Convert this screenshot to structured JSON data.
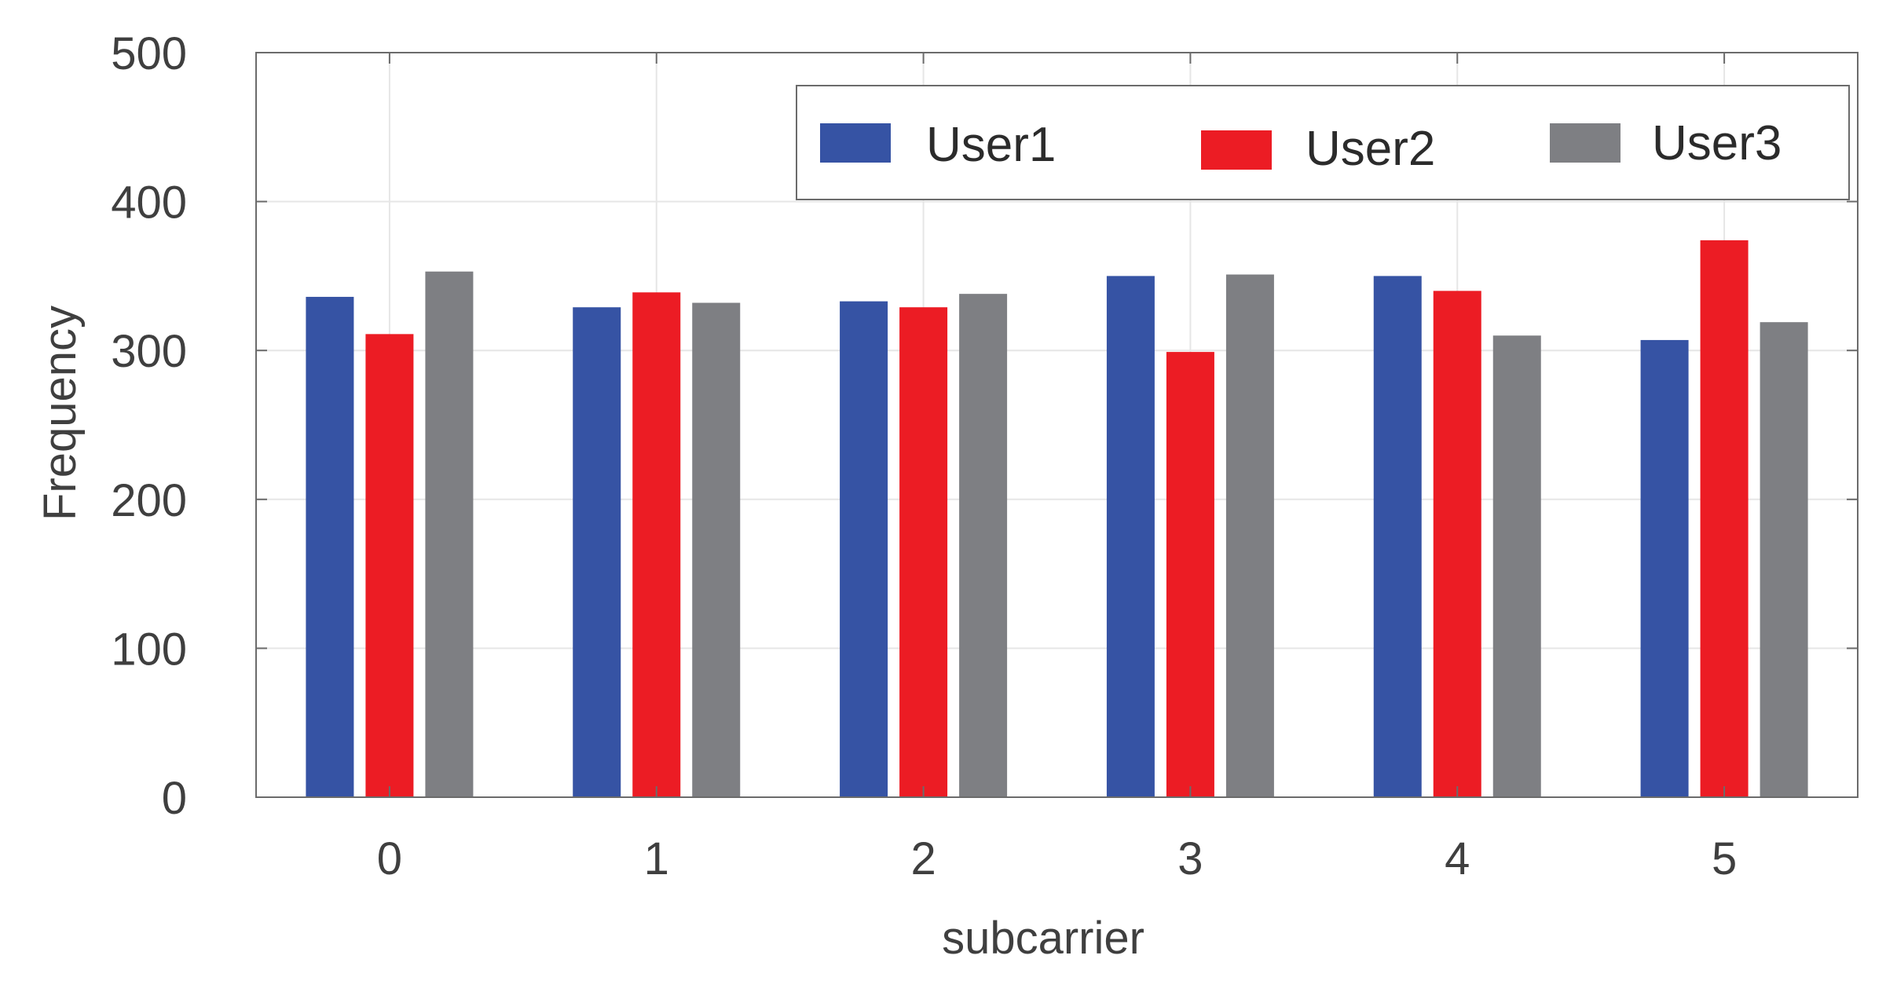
{
  "chart_data": {
    "type": "bar",
    "xlabel": "subcarrier",
    "ylabel": "Frequency",
    "categories": [
      "0",
      "1",
      "2",
      "3",
      "4",
      "5"
    ],
    "ylim": [
      0,
      500
    ],
    "yticks": [
      "0",
      "100",
      "200",
      "300",
      "400",
      "500"
    ],
    "grid": true,
    "legend_position": "top-right",
    "series": [
      {
        "name": "User1",
        "color": "#3653a4",
        "values": [
          336,
          329,
          333,
          350,
          350,
          307
        ]
      },
      {
        "name": "User2",
        "color": "#ec1c24",
        "values": [
          311,
          339,
          329,
          299,
          340,
          374
        ]
      },
      {
        "name": "User3",
        "color": "#7e7f83",
        "values": [
          353,
          332,
          338,
          351,
          310,
          319
        ]
      }
    ]
  }
}
